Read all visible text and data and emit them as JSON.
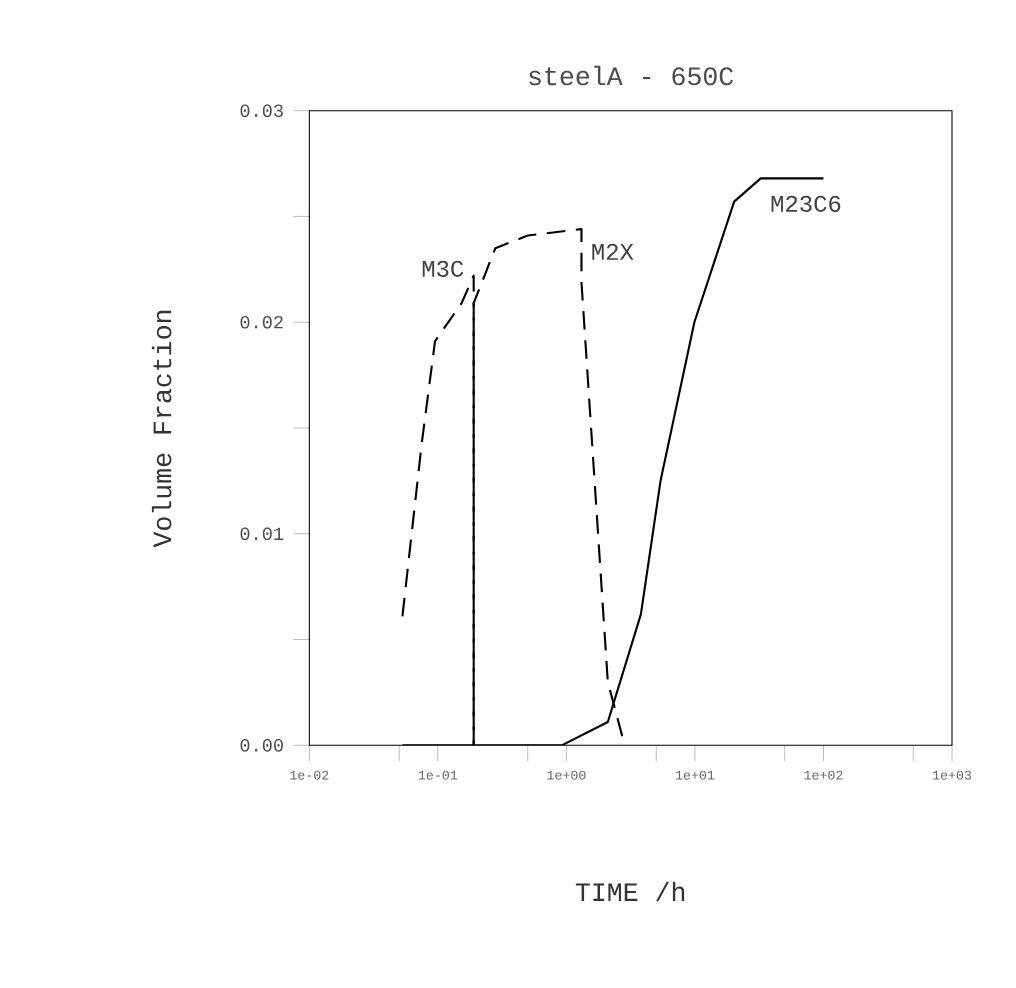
{
  "chart_data": {
    "type": "line",
    "title": "steelA - 650C",
    "xlabel": "TIME /h",
    "ylabel": "Volume Fraction",
    "log": "x",
    "xlim": [
      0.01,
      1000
    ],
    "ylim": [
      0,
      0.03
    ],
    "xticks": [
      {
        "value": 0.01,
        "label": "1e-02"
      },
      {
        "value": 0.05,
        "label": null
      },
      {
        "value": 0.1,
        "label": "1e-01"
      },
      {
        "value": 0.5,
        "label": null
      },
      {
        "value": 1,
        "label": "1e+00"
      },
      {
        "value": 5,
        "label": null
      },
      {
        "value": 10,
        "label": "1e+01"
      },
      {
        "value": 50,
        "label": null
      },
      {
        "value": 100,
        "label": "1e+02"
      },
      {
        "value": 500,
        "label": null
      },
      {
        "value": 1000,
        "label": "1e+03"
      }
    ],
    "yticks": [
      {
        "value": 0,
        "label": "0.00"
      },
      {
        "value": 0.005,
        "label": null
      },
      {
        "value": 0.01,
        "label": "0.01"
      },
      {
        "value": 0.015,
        "label": null
      },
      {
        "value": 0.02,
        "label": "0.02"
      },
      {
        "value": 0.025,
        "label": null
      },
      {
        "value": 0.03,
        "label": "0.03"
      }
    ],
    "grid": false,
    "marker": "none",
    "series": [
      {
        "name": "M3C",
        "color": "#000000",
        "line_style": "dashed",
        "x": [
          0.053,
          0.075,
          0.095,
          0.153,
          0.19,
          0.19
        ],
        "values": [
          0.0061,
          0.0143,
          0.0191,
          0.0209,
          0.0222,
          0
        ]
      },
      {
        "name": "M2X",
        "color": "#000000",
        "line_style": "dashed",
        "x": [
          0.19,
          0.19,
          0.28,
          0.5,
          1.31,
          1.31,
          2.1,
          2.84
        ],
        "values": [
          0,
          0.0209,
          0.0235,
          0.0241,
          0.0244,
          0.0219,
          0.003,
          0
        ]
      },
      {
        "name": "M23C6",
        "color": "#000000",
        "line_style": "solid",
        "x": [
          0.053,
          0.92,
          2.1,
          3.8,
          5.4,
          9.9,
          20.2,
          32.5,
          100
        ],
        "values": [
          0,
          0,
          0.0011,
          0.0062,
          0.0125,
          0.02,
          0.0257,
          0.0268,
          0.0268
        ]
      }
    ]
  }
}
